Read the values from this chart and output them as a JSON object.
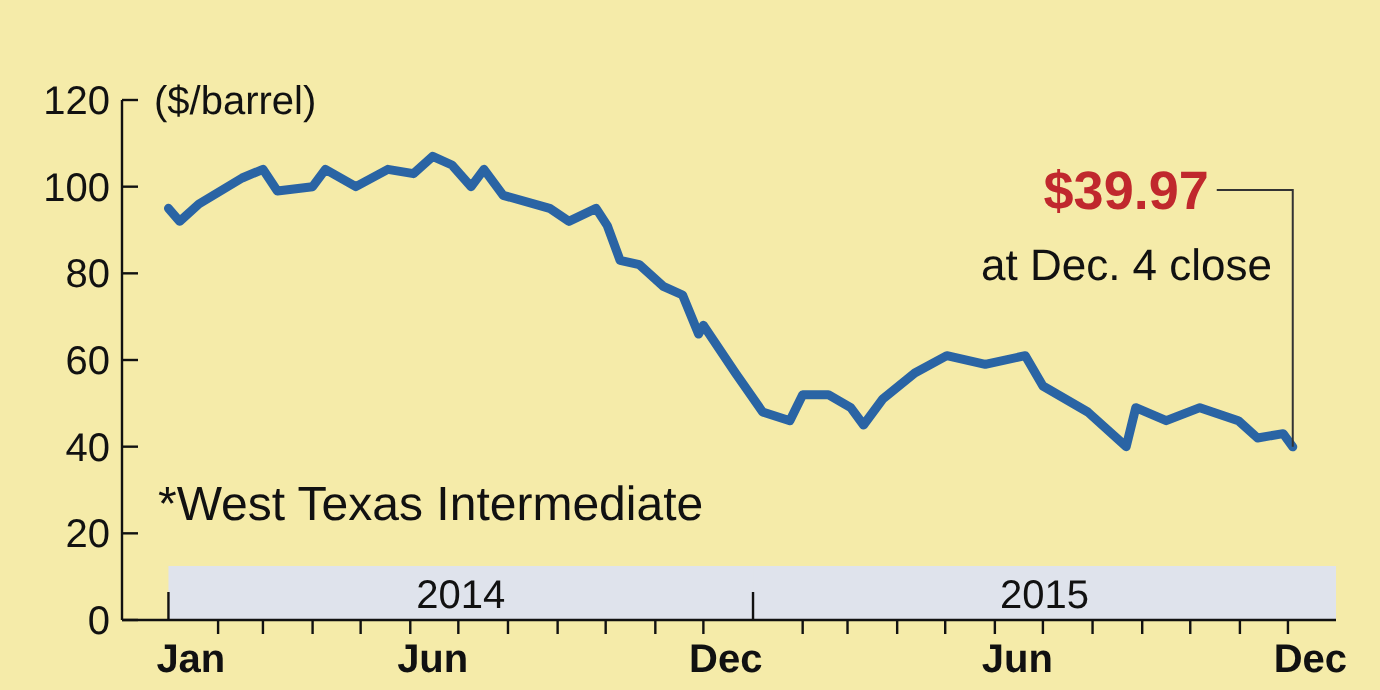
{
  "chart_data": {
    "type": "line",
    "ylabel": "($/barrel)",
    "x": [
      "2014-01-01",
      "2014-01-08",
      "2014-01-20",
      "2014-02-16",
      "2014-03-01",
      "2014-03-10",
      "2014-04-01",
      "2014-04-09",
      "2014-04-28",
      "2014-05-18",
      "2014-06-03",
      "2014-06-15",
      "2014-06-27",
      "2014-07-09",
      "2014-07-17",
      "2014-07-29",
      "2014-08-27",
      "2014-09-08",
      "2014-09-25",
      "2014-10-02",
      "2014-10-10",
      "2014-10-22",
      "2014-11-06",
      "2014-11-18",
      "2014-11-28",
      "2014-12-01",
      "2014-12-21",
      "2015-01-07",
      "2015-01-24",
      "2015-02-01",
      "2015-02-17",
      "2015-03-03",
      "2015-03-11",
      "2015-03-23",
      "2015-04-12",
      "2015-05-02",
      "2015-05-26",
      "2015-06-20",
      "2015-07-01",
      "2015-07-29",
      "2015-08-22",
      "2015-08-28",
      "2015-09-16",
      "2015-10-07",
      "2015-10-31",
      "2015-11-12",
      "2015-11-28",
      "2015-12-04"
    ],
    "series": [
      {
        "color": "#2a64a4",
        "values": [
          95,
          92,
          96,
          102,
          104,
          99,
          100,
          104,
          100,
          104,
          103,
          107,
          105,
          100,
          104,
          98,
          95,
          92,
          95,
          91,
          83,
          82,
          77,
          75,
          66,
          68,
          57,
          48,
          46,
          52,
          52,
          49,
          45,
          51,
          57,
          61,
          59,
          61,
          54,
          48,
          40,
          49,
          46,
          49,
          46,
          42,
          43,
          39.97
        ]
      }
    ],
    "xlim": [
      "2013-12-03",
      "2015-12-31"
    ],
    "xticks": [
      {
        "value": "2014-01-15",
        "label": "Jan"
      },
      {
        "value": "2014-06-15",
        "label": "Jun"
      },
      {
        "value": "2014-12-15",
        "label": "Dec"
      },
      {
        "value": "2015-06-15",
        "label": "Jun"
      },
      {
        "value": "2015-12-15",
        "label": "Dec"
      },
      {
        "value": "2014-02-01",
        "label": null
      },
      {
        "value": "2014-03-01",
        "label": null
      },
      {
        "value": "2014-04-01",
        "label": null
      },
      {
        "value": "2014-05-01",
        "label": null
      },
      {
        "value": "2014-06-01",
        "label": null
      },
      {
        "value": "2014-07-01",
        "label": null
      },
      {
        "value": "2014-08-01",
        "label": null
      },
      {
        "value": "2014-09-01",
        "label": null
      },
      {
        "value": "2014-10-01",
        "label": null
      },
      {
        "value": "2014-11-01",
        "label": null
      },
      {
        "value": "2014-12-01",
        "label": null
      },
      {
        "value": "2015-02-01",
        "label": null
      },
      {
        "value": "2015-03-01",
        "label": null
      },
      {
        "value": "2015-04-01",
        "label": null
      },
      {
        "value": "2015-05-01",
        "label": null
      },
      {
        "value": "2015-06-01",
        "label": null
      },
      {
        "value": "2015-07-01",
        "label": null
      },
      {
        "value": "2015-08-01",
        "label": null
      },
      {
        "value": "2015-09-01",
        "label": null
      },
      {
        "value": "2015-10-01",
        "label": null
      },
      {
        "value": "2015-11-01",
        "label": null
      },
      {
        "value": "2015-12-01",
        "label": null
      }
    ],
    "ylim": [
      0,
      120
    ],
    "yticks": [
      0,
      20,
      40,
      60,
      80,
      100,
      120
    ],
    "bands": [
      {
        "axis": "x",
        "from": "2014-01-01",
        "to": "2015-01-01",
        "label": "2014",
        "color": "#dfe3ec"
      },
      {
        "axis": "x",
        "from": "2015-01-01",
        "to": "2015-12-31",
        "label": "2015",
        "color": "#dfe3ec"
      }
    ],
    "annotations": [
      {
        "text": "$39.97",
        "x": "2015-12-04",
        "y": 39.97
      },
      "at Dec. 4 close",
      "*West Texas Intermediate"
    ],
    "grid": false,
    "line_style": "solid",
    "marker": "none"
  }
}
